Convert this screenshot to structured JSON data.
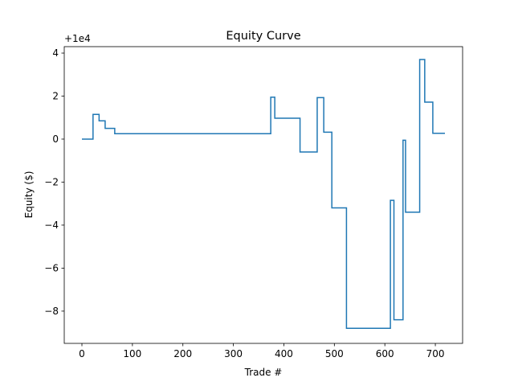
{
  "chart_data": {
    "type": "line",
    "title": "Equity Curve",
    "xlabel": "Trade #",
    "ylabel": "Equity ($)",
    "y_offset_label": "+1e4",
    "xlim": [
      -35,
      754
    ],
    "ylim": [
      -9.5,
      4.3
    ],
    "x_ticks": [
      0,
      100,
      200,
      300,
      400,
      500,
      600,
      700
    ],
    "y_ticks": [
      4,
      2,
      0,
      -2,
      -4,
      -6,
      -8
    ],
    "y_tick_labels": [
      "4",
      "2",
      "0",
      "−2",
      "−4",
      "−6",
      "−8"
    ],
    "grid": false,
    "legend": "none",
    "line_color": "#1f77b4",
    "series": [
      {
        "x": [
          0,
          22,
          22,
          34,
          34,
          46,
          46,
          61,
          61,
          65,
          65,
          374,
          374,
          382,
          382,
          432,
          432,
          466,
          466,
          479,
          479,
          495,
          495,
          524,
          524,
          611,
          611,
          618,
          618,
          636,
          636,
          641,
          641,
          646,
          646,
          669,
          669,
          679,
          679,
          695,
          695,
          719
        ],
        "y": [
          0,
          0,
          1.15,
          1.15,
          0.85,
          0.85,
          0.5,
          0.5,
          0.5,
          0.5,
          0.25,
          0.25,
          1.95,
          1.95,
          0.97,
          0.97,
          -0.6,
          -0.6,
          1.93,
          1.93,
          0.32,
          0.32,
          -3.2,
          -3.2,
          -8.8,
          -8.8,
          -2.85,
          -2.85,
          -8.4,
          -8.4,
          -0.05,
          -0.05,
          -3.4,
          -3.4,
          -3.4,
          -3.4,
          3.7,
          3.7,
          1.72,
          1.72,
          0.27,
          0.27
        ]
      }
    ]
  }
}
